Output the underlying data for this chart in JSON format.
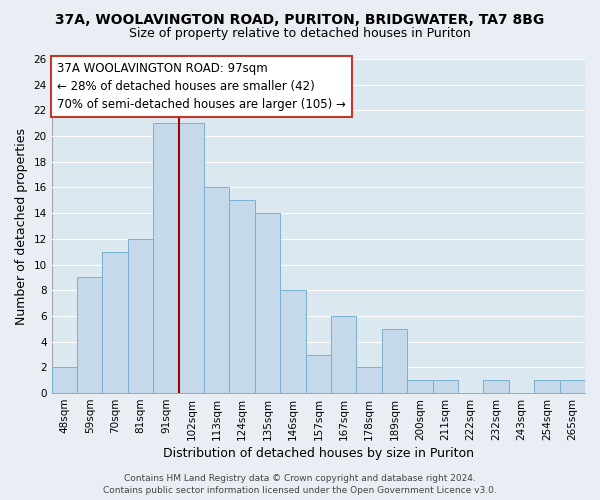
{
  "title": "37A, WOOLAVINGTON ROAD, PURITON, BRIDGWATER, TA7 8BG",
  "subtitle": "Size of property relative to detached houses in Puriton",
  "xlabel": "Distribution of detached houses by size in Puriton",
  "ylabel": "Number of detached properties",
  "categories": [
    "48sqm",
    "59sqm",
    "70sqm",
    "81sqm",
    "91sqm",
    "102sqm",
    "113sqm",
    "124sqm",
    "135sqm",
    "146sqm",
    "157sqm",
    "167sqm",
    "178sqm",
    "189sqm",
    "200sqm",
    "211sqm",
    "222sqm",
    "232sqm",
    "243sqm",
    "254sqm",
    "265sqm"
  ],
  "values": [
    2,
    9,
    11,
    12,
    21,
    21,
    16,
    15,
    14,
    8,
    3,
    6,
    2,
    5,
    1,
    1,
    0,
    1,
    0,
    1,
    1
  ],
  "bar_color": "#c5d9ea",
  "bar_edge_color": "#7ab0cf",
  "vline_color": "#a00000",
  "vline_x_index": 5,
  "ylim": [
    0,
    26
  ],
  "yticks": [
    0,
    2,
    4,
    6,
    8,
    10,
    12,
    14,
    16,
    18,
    20,
    22,
    24,
    26
  ],
  "annotation_title": "37A WOOLAVINGTON ROAD: 97sqm",
  "annotation_line1": "← 28% of detached houses are smaller (42)",
  "annotation_line2": "70% of semi-detached houses are larger (105) →",
  "annotation_box_color": "#ffffff",
  "annotation_box_edge_color": "#c0392b",
  "footer_line1": "Contains HM Land Registry data © Crown copyright and database right 2024.",
  "footer_line2": "Contains public sector information licensed under the Open Government Licence v3.0.",
  "figure_bg_color": "#e8eef4",
  "plot_bg_color": "#dce8f0",
  "grid_color": "#ffffff",
  "title_fontsize": 10,
  "subtitle_fontsize": 9,
  "xlabel_fontsize": 9,
  "ylabel_fontsize": 9,
  "tick_fontsize": 7.5,
  "annotation_fontsize": 8.5,
  "footer_fontsize": 6.5
}
